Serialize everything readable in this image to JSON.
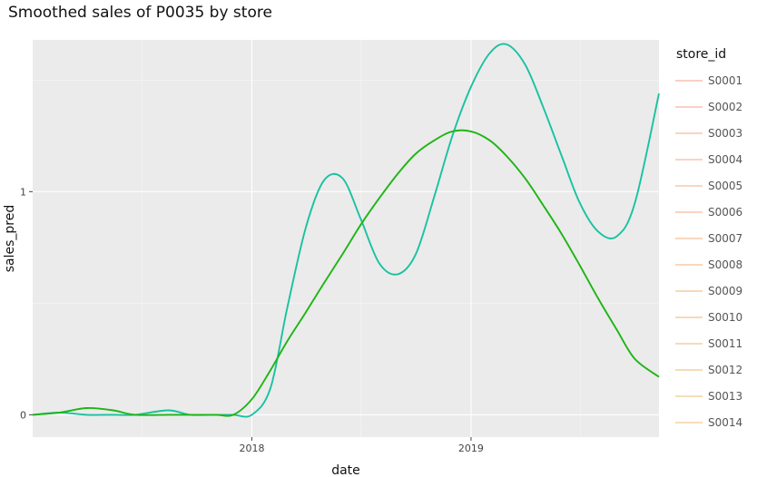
{
  "chart_data": {
    "type": "line",
    "title": "Smoothed sales of P0035 by store",
    "xlabel": "date",
    "ylabel": "sales_pred",
    "x_ticks": [
      {
        "value": "2018-01-01",
        "label": "2018"
      },
      {
        "value": "2019-01-01",
        "label": "2019"
      }
    ],
    "y_ticks": [
      {
        "value": 0,
        "label": "0"
      },
      {
        "value": 1,
        "label": "1"
      }
    ],
    "xlim": [
      "2017-01-01",
      "2019-11-10"
    ],
    "ylim": [
      -0.1,
      1.68
    ],
    "grid": true,
    "legend_title": "store_id",
    "legend_position": "right",
    "series_colors": {
      "teal": "#19C2A0",
      "green": "#1EB514"
    },
    "series": [
      {
        "color": "#19C2A0",
        "x": [
          "2017-01-01",
          "2017-02-15",
          "2017-04-01",
          "2017-05-15",
          "2017-06-20",
          "2017-08-15",
          "2017-09-20",
          "2017-11-01",
          "2017-12-01",
          "2018-01-01",
          "2018-02-01",
          "2018-03-01",
          "2018-04-01",
          "2018-05-01",
          "2018-06-01",
          "2018-07-01",
          "2018-08-01",
          "2018-09-01",
          "2018-10-01",
          "2018-11-01",
          "2018-12-01",
          "2019-01-01",
          "2019-02-01",
          "2019-03-01",
          "2019-04-01",
          "2019-05-01",
          "2019-06-01",
          "2019-07-01",
          "2019-08-01",
          "2019-09-01",
          "2019-10-01",
          "2019-11-10"
        ],
        "y": [
          0.0,
          0.01,
          0.0,
          0.0,
          0.0,
          0.02,
          0.0,
          0.0,
          0.0,
          0.0,
          0.12,
          0.48,
          0.84,
          1.05,
          1.06,
          0.88,
          0.68,
          0.63,
          0.72,
          0.98,
          1.25,
          1.47,
          1.62,
          1.66,
          1.57,
          1.38,
          1.16,
          0.95,
          0.82,
          0.8,
          0.95,
          1.44
        ]
      },
      {
        "color": "#1EB514",
        "x": [
          "2017-01-01",
          "2017-02-15",
          "2017-04-01",
          "2017-05-15",
          "2017-06-20",
          "2017-08-15",
          "2017-09-20",
          "2017-11-01",
          "2017-12-01",
          "2018-01-01",
          "2018-02-01",
          "2018-03-01",
          "2018-04-01",
          "2018-05-01",
          "2018-06-01",
          "2018-07-01",
          "2018-08-01",
          "2018-09-01",
          "2018-10-01",
          "2018-11-01",
          "2018-12-01",
          "2019-01-01",
          "2019-02-01",
          "2019-03-01",
          "2019-04-01",
          "2019-05-01",
          "2019-06-01",
          "2019-07-01",
          "2019-08-01",
          "2019-09-01",
          "2019-10-01",
          "2019-11-10"
        ],
        "y": [
          0.0,
          0.01,
          0.03,
          0.02,
          0.0,
          0.0,
          0.0,
          0.0,
          0.0,
          0.07,
          0.2,
          0.33,
          0.46,
          0.59,
          0.72,
          0.85,
          0.97,
          1.08,
          1.17,
          1.23,
          1.27,
          1.27,
          1.23,
          1.16,
          1.06,
          0.94,
          0.81,
          0.67,
          0.52,
          0.38,
          0.25,
          0.17
        ]
      }
    ],
    "legend": {
      "items": [
        "S0001",
        "S0002",
        "S0003",
        "S0004",
        "S0005",
        "S0006",
        "S0007",
        "S0008",
        "S0009",
        "S0010",
        "S0011",
        "S0012",
        "S0013",
        "S0014"
      ],
      "colors": [
        "#F8A898",
        "#F8A898",
        "#F6AE92",
        "#F6AE92",
        "#F4B28C",
        "#F4B28C",
        "#F2B686",
        "#F2B686",
        "#F0BA82",
        "#F0BA82",
        "#EEBE7E",
        "#EEBE7E",
        "#ECC27A",
        "#ECC27A"
      ]
    }
  }
}
